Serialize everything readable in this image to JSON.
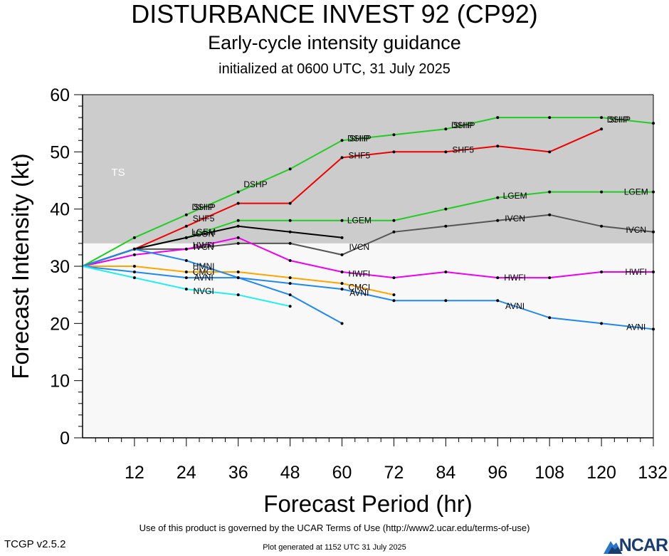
{
  "header": {
    "title": "DISTURBANCE INVEST 92 (CP92)",
    "subtitle": "Early-cycle intensity guidance",
    "init": "initialized at 0600 UTC, 31 July 2025"
  },
  "footer": {
    "terms": "Use of this product is governed by the UCAR Terms of Use (http://www2.ucar.edu/terms-of-use)",
    "version": "TCGP v2.5.2",
    "generated": "Plot generated at 1152 UTC   31 July 2025",
    "logo": "NCAR"
  },
  "chart_data": {
    "type": "line",
    "xlabel": "Forecast Period (hr)",
    "ylabel": "Forecast Intensity (kt)",
    "xlim": [
      0,
      132
    ],
    "ylim": [
      0,
      60
    ],
    "xticks": [
      12,
      24,
      36,
      48,
      60,
      72,
      84,
      96,
      108,
      120,
      132
    ],
    "yticks": [
      0,
      10,
      20,
      30,
      40,
      50,
      60
    ],
    "grid": false,
    "ts_band": {
      "label": "TS",
      "from": 34,
      "to": 60,
      "color": "#cccccc"
    },
    "below_color": "#f8f8f8",
    "series": [
      {
        "name": "DSHP",
        "color": "#22cc22",
        "points": [
          [
            0,
            30
          ],
          [
            12,
            35
          ],
          [
            24,
            39
          ],
          [
            36,
            43
          ],
          [
            48,
            47
          ],
          [
            60,
            52
          ],
          [
            72,
            53
          ],
          [
            84,
            54
          ],
          [
            96,
            56
          ],
          [
            108,
            56
          ],
          [
            120,
            56
          ],
          [
            132,
            55
          ]
        ],
        "labels": [
          [
            24,
            39
          ],
          [
            36,
            43
          ],
          [
            48,
            47
          ],
          [
            60,
            52
          ],
          [
            72,
            53
          ],
          [
            84,
            54
          ],
          [
            96,
            56
          ],
          [
            108,
            56
          ],
          [
            120,
            56
          ],
          [
            132,
            55
          ]
        ],
        "label_x": [
          24,
          36,
          60,
          84,
          120
        ]
      },
      {
        "name": "SHIP",
        "color": "#22cc22",
        "points": [],
        "label_x": [
          24,
          60,
          84,
          120
        ]
      },
      {
        "name": "SHF5",
        "color": "#ee0000",
        "points": [
          [
            0,
            30
          ],
          [
            12,
            33
          ],
          [
            24,
            37
          ],
          [
            36,
            41
          ],
          [
            48,
            41
          ],
          [
            60,
            49
          ],
          [
            72,
            50
          ],
          [
            84,
            50
          ],
          [
            96,
            51
          ],
          [
            108,
            50
          ],
          [
            120,
            54
          ]
        ],
        "label_x": [
          24,
          60,
          84
        ]
      },
      {
        "name": "LGEM",
        "color": "#22cc22",
        "points": [
          [
            0,
            30
          ],
          [
            12,
            33
          ],
          [
            24,
            35
          ],
          [
            36,
            38
          ],
          [
            48,
            38
          ],
          [
            60,
            38
          ],
          [
            72,
            38
          ],
          [
            84,
            40
          ],
          [
            96,
            42
          ],
          [
            108,
            43
          ],
          [
            120,
            43
          ],
          [
            132,
            43
          ]
        ],
        "label_x": [
          24,
          60,
          96,
          132
        ]
      },
      {
        "name": "IVCN",
        "color": "#555555",
        "points": [
          [
            0,
            30
          ],
          [
            12,
            33
          ],
          [
            24,
            33
          ],
          [
            36,
            34
          ],
          [
            48,
            34
          ],
          [
            60,
            32
          ],
          [
            72,
            36
          ],
          [
            84,
            37
          ],
          [
            96,
            38
          ],
          [
            108,
            39
          ],
          [
            120,
            37
          ],
          [
            132,
            36
          ]
        ],
        "label_x": [
          24,
          60,
          96,
          132
        ]
      },
      {
        "name": "ICON",
        "color": "#000000",
        "points": [
          [
            0,
            30
          ],
          [
            12,
            33
          ],
          [
            24,
            35
          ],
          [
            36,
            37
          ],
          [
            48,
            36
          ],
          [
            60,
            35
          ]
        ],
        "label_x": [
          24
        ]
      },
      {
        "name": "HWFI",
        "color": "#ee00ee",
        "points": [
          [
            0,
            30
          ],
          [
            12,
            32
          ],
          [
            24,
            33
          ],
          [
            36,
            35
          ],
          [
            48,
            31
          ],
          [
            60,
            29
          ],
          [
            72,
            28
          ],
          [
            84,
            29
          ],
          [
            96,
            28
          ],
          [
            108,
            28
          ],
          [
            120,
            29
          ],
          [
            132,
            29
          ]
        ],
        "label_x": [
          24,
          60,
          96,
          132
        ]
      },
      {
        "name": "CMCI",
        "color": "#ffa500",
        "points": [
          [
            0,
            30
          ],
          [
            12,
            30
          ],
          [
            24,
            29
          ],
          [
            36,
            29
          ],
          [
            48,
            28
          ],
          [
            60,
            27
          ],
          [
            72,
            25
          ]
        ],
        "label_x": [
          24,
          60
        ]
      },
      {
        "name": "HMNI",
        "color": "#2288ee",
        "points": [
          [
            0,
            30
          ],
          [
            12,
            33
          ],
          [
            24,
            31
          ],
          [
            36,
            28
          ],
          [
            48,
            25
          ],
          [
            60,
            20
          ]
        ],
        "label_x": [
          24
        ]
      },
      {
        "name": "AVNI",
        "color": "#2288ee",
        "points": [
          [
            0,
            30
          ],
          [
            12,
            29
          ],
          [
            24,
            28
          ],
          [
            36,
            28
          ],
          [
            48,
            27
          ],
          [
            60,
            26
          ],
          [
            72,
            24
          ],
          [
            84,
            24
          ],
          [
            96,
            24
          ],
          [
            108,
            21
          ],
          [
            120,
            20
          ],
          [
            132,
            19
          ]
        ],
        "label_x": [
          24,
          60,
          96,
          132
        ]
      },
      {
        "name": "NVGI",
        "color": "#22eeee",
        "points": [
          [
            0,
            30
          ],
          [
            12,
            28
          ],
          [
            24,
            26
          ],
          [
            36,
            25
          ],
          [
            48,
            23
          ]
        ],
        "label_x": [
          24
        ]
      }
    ]
  }
}
